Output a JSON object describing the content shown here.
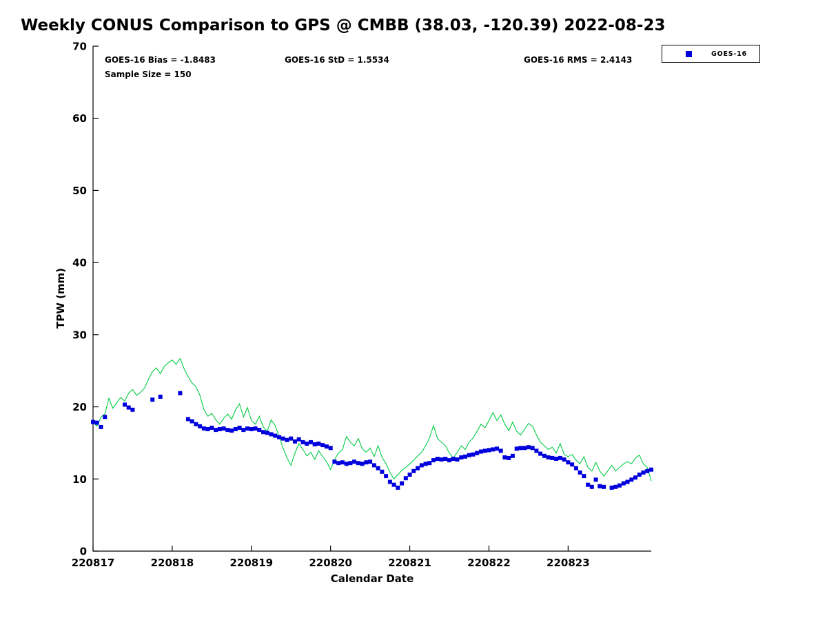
{
  "title": "Weekly CONUS Comparison to GPS @ CMBB (38.03, -120.39) 2022-08-23",
  "annotations": {
    "bias": "GOES-16 Bias = -1.8483",
    "std": "GOES-16 StD = 1.5534",
    "rms": "GOES-16 RMS = 2.4143",
    "sample": "Sample Size = 150"
  },
  "legend": {
    "label": "GOES-16",
    "marker": "square",
    "marker_color": "#0000dd"
  },
  "axes": {
    "xlabel": "Calendar Date",
    "ylabel": "TPW (mm)"
  },
  "chart_data": {
    "type": "line+scatter",
    "title": "Weekly CONUS Comparison to GPS @ CMBB (38.03, -120.39) 2022-08-23",
    "xlabel": "Calendar Date",
    "ylabel": "TPW (mm)",
    "ylim": [
      0,
      70
    ],
    "xlim_days": [
      0,
      7.05
    ],
    "grid": false,
    "legend_position": "top-right",
    "stats": {
      "bias": -1.8483,
      "std": 1.5534,
      "rms": 2.4143,
      "sample_size": 150
    },
    "yticks": [
      0,
      10,
      20,
      30,
      40,
      50,
      60,
      70
    ],
    "xticks": [
      {
        "pos": 0,
        "label": "220817"
      },
      {
        "pos": 1,
        "label": "220818"
      },
      {
        "pos": 2,
        "label": "220819"
      },
      {
        "pos": 3,
        "label": "220820"
      },
      {
        "pos": 4,
        "label": "220821"
      },
      {
        "pos": 5,
        "label": "220822"
      },
      {
        "pos": 6,
        "label": "220823"
      }
    ],
    "series": [
      {
        "name": "GPS",
        "type": "line",
        "color": "#00cc44",
        "x_start": 0,
        "dx": 0.05,
        "values": [
          17.9,
          17.3,
          18.6,
          19.0,
          21.2,
          19.8,
          20.6,
          21.3,
          20.8,
          21.9,
          22.4,
          21.6,
          22.0,
          22.6,
          23.8,
          24.9,
          25.4,
          24.6,
          25.6,
          26.1,
          26.5,
          25.9,
          26.7,
          25.3,
          24.2,
          23.3,
          22.8,
          21.6,
          19.6,
          18.7,
          19.1,
          18.2,
          17.6,
          18.4,
          19.0,
          18.3,
          19.6,
          20.4,
          18.6,
          19.9,
          18.1,
          17.6,
          18.7,
          17.2,
          16.6,
          18.2,
          17.4,
          15.9,
          14.3,
          12.9,
          11.9,
          13.6,
          14.9,
          14.1,
          13.2,
          13.7,
          12.7,
          13.9,
          13.1,
          12.4,
          11.3,
          12.7,
          13.6,
          14.1,
          15.9,
          15.1,
          14.6,
          15.6,
          14.2,
          13.7,
          14.3,
          13.1,
          14.6,
          13.0,
          12.1,
          10.9,
          10.0,
          10.6,
          11.2,
          11.6,
          12.1,
          12.6,
          13.2,
          13.7,
          14.6,
          15.7,
          17.4,
          15.6,
          15.1,
          14.6,
          13.6,
          12.9,
          13.7,
          14.6,
          14.1,
          15.1,
          15.7,
          16.6,
          17.6,
          17.1,
          18.1,
          19.2,
          18.1,
          18.9,
          17.6,
          16.7,
          17.9,
          16.6,
          16.1,
          16.9,
          17.7,
          17.3,
          16.1,
          15.1,
          14.6,
          14.1,
          14.4,
          13.6,
          14.9,
          13.4,
          13.1,
          13.4,
          12.6,
          12.1,
          13.1,
          11.6,
          11.1,
          12.3,
          11.1,
          10.4,
          11.1,
          11.9,
          11.1,
          11.6,
          12.1,
          12.4,
          12.1,
          12.9,
          13.3,
          12.1,
          11.6,
          9.7
        ]
      },
      {
        "name": "GOES-16",
        "type": "scatter-square",
        "color": "#0000dd",
        "x_start": 0,
        "dx": 0.05,
        "values": [
          17.9,
          17.8,
          17.2,
          18.6,
          null,
          null,
          null,
          null,
          20.3,
          19.9,
          19.6,
          null,
          null,
          null,
          null,
          21.0,
          null,
          21.4,
          null,
          null,
          null,
          null,
          21.9,
          null,
          18.3,
          18.0,
          17.6,
          17.3,
          17.0,
          16.9,
          17.1,
          16.8,
          16.9,
          17.0,
          16.8,
          16.7,
          16.9,
          17.1,
          16.8,
          17.0,
          16.9,
          17.0,
          16.8,
          16.5,
          16.4,
          16.2,
          16.0,
          15.8,
          15.6,
          15.4,
          15.6,
          15.2,
          15.5,
          15.1,
          14.9,
          15.1,
          14.8,
          14.9,
          14.7,
          14.5,
          14.3,
          12.4,
          12.2,
          12.3,
          12.1,
          12.2,
          12.4,
          12.2,
          12.1,
          12.3,
          12.4,
          11.9,
          11.5,
          11.0,
          10.4,
          9.6,
          9.2,
          8.8,
          9.4,
          10.1,
          10.6,
          11.1,
          11.5,
          11.9,
          12.1,
          12.2,
          12.6,
          12.8,
          12.7,
          12.8,
          12.6,
          12.8,
          12.7,
          13.0,
          13.1,
          13.3,
          13.4,
          13.6,
          13.8,
          13.9,
          14.0,
          14.1,
          14.2,
          13.9,
          13.0,
          12.9,
          13.2,
          14.2,
          14.3,
          14.3,
          14.4,
          14.3,
          13.9,
          13.5,
          13.2,
          13.0,
          12.9,
          12.8,
          12.9,
          12.7,
          12.3,
          12.0,
          11.5,
          10.9,
          10.4,
          9.2,
          8.9,
          9.9,
          9.0,
          8.9,
          null,
          8.8,
          8.9,
          9.1,
          9.4,
          9.6,
          9.9,
          10.2,
          10.6,
          10.9,
          11.1,
          11.3
        ]
      }
    ]
  }
}
